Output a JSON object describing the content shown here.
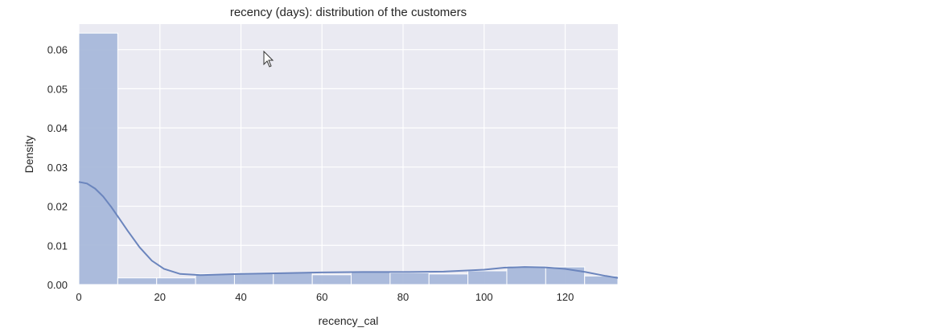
{
  "chart_data": {
    "type": "histogram",
    "title": "recency (days): distribution of the customers",
    "xlabel": "recency_cal",
    "ylabel": "Density",
    "xlim": [
      0,
      133
    ],
    "ylim": [
      0,
      0.0665
    ],
    "x_ticks": [
      0,
      20,
      40,
      60,
      80,
      100,
      120
    ],
    "y_ticks": [
      0.0,
      0.01,
      0.02,
      0.03,
      0.04,
      0.05,
      0.06
    ],
    "y_tick_labels": [
      "0.00",
      "0.01",
      "0.02",
      "0.03",
      "0.04",
      "0.05",
      "0.06"
    ],
    "grid": true,
    "bins": [
      {
        "x0": 0,
        "x1": 9.6,
        "density": 0.0642
      },
      {
        "x0": 9.6,
        "x1": 19.2,
        "density": 0.0017
      },
      {
        "x0": 19.2,
        "x1": 28.8,
        "density": 0.0017
      },
      {
        "x0": 28.8,
        "x1": 38.4,
        "density": 0.0027
      },
      {
        "x0": 38.4,
        "x1": 48.0,
        "density": 0.003
      },
      {
        "x0": 48.0,
        "x1": 57.6,
        "density": 0.003
      },
      {
        "x0": 57.6,
        "x1": 67.2,
        "density": 0.0025
      },
      {
        "x0": 67.2,
        "x1": 76.8,
        "density": 0.0032
      },
      {
        "x0": 76.8,
        "x1": 86.4,
        "density": 0.003
      },
      {
        "x0": 86.4,
        "x1": 96.0,
        "density": 0.0027
      },
      {
        "x0": 96.0,
        "x1": 105.6,
        "density": 0.0035
      },
      {
        "x0": 105.6,
        "x1": 115.2,
        "density": 0.0047
      },
      {
        "x0": 115.2,
        "x1": 124.8,
        "density": 0.0045
      },
      {
        "x0": 124.8,
        "x1": 133.0,
        "density": 0.0022
      }
    ],
    "kde": {
      "x": [
        0,
        2,
        4,
        6,
        8,
        10,
        12,
        15,
        18,
        21,
        25,
        30,
        40,
        50,
        60,
        70,
        80,
        90,
        100,
        105,
        110,
        115,
        120,
        125,
        130,
        133
      ],
      "y": [
        0.0262,
        0.0258,
        0.0245,
        0.0225,
        0.0198,
        0.0168,
        0.0138,
        0.0095,
        0.0061,
        0.004,
        0.0027,
        0.0024,
        0.0027,
        0.0029,
        0.0031,
        0.0032,
        0.0032,
        0.0033,
        0.0038,
        0.0043,
        0.0045,
        0.0044,
        0.004,
        0.0032,
        0.0022,
        0.0017
      ]
    },
    "colors": {
      "plot_bg": "#eaeaf2",
      "grid": "#ffffff",
      "bar_fill": "#a8b8da",
      "bar_edge": "#ffffff",
      "kde_line": "#6b85bd"
    }
  }
}
